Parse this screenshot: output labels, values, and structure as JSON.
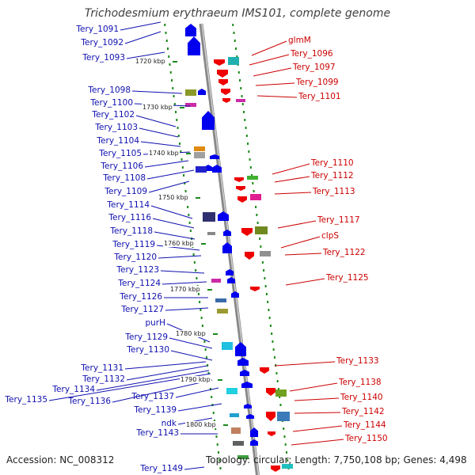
{
  "title": "Trichodesmium erythraeum IMS101, complete genome",
  "accession": "Accession: NC_008312",
  "topology": "Topology: circular; Length: 7,750,108 bp; Genes: 4,498",
  "colors": {
    "left_label": "#1010b0",
    "right_label": "#cc0000",
    "forward_gene": "#0000ee",
    "reverse_gene": "#ee0000",
    "backbone": "#999999",
    "tick": "#1a8a1a"
  },
  "ruler": [
    "1720 kbp",
    "1730 kbp",
    "1740 kbp",
    "1750 kbp",
    "1760 kbp",
    "1770 kbp",
    "1780 kbp",
    "1790 kbp",
    "1800 kbp"
  ],
  "left_genes": [
    "Tery_1091",
    "Tery_1092",
    "Tery_1093",
    "Tery_1098",
    "Tery_1100",
    "Tery_1102",
    "Tery_1103",
    "Tery_1104",
    "Tery_1105",
    "Tery_1106",
    "Tery_1108",
    "Tery_1109",
    "Tery_1114",
    "Tery_1116",
    "Tery_1118",
    "Tery_1119",
    "Tery_1120",
    "Tery_1123",
    "Tery_1124",
    "Tery_1126",
    "Tery_1127",
    "purH",
    "Tery_1129",
    "Tery_1130",
    "Tery_1131",
    "Tery_1132",
    "Tery_1134",
    "Tery_1135",
    "Tery_1136",
    "Tery_1137",
    "Tery_1139",
    "ndk",
    "Tery_1143",
    "Tery_1149"
  ],
  "right_genes": [
    "glmM",
    "Tery_1096",
    "Tery_1097",
    "Tery_1099",
    "Tery_1101",
    "Tery_1110",
    "Tery_1112",
    "Tery_1113",
    "Tery_1117",
    "clpS",
    "Tery_1122",
    "Tery_1125",
    "Tery_1133",
    "Tery_1138",
    "Tery_1140",
    "Tery_1142",
    "Tery_1144",
    "Tery_1150"
  ]
}
